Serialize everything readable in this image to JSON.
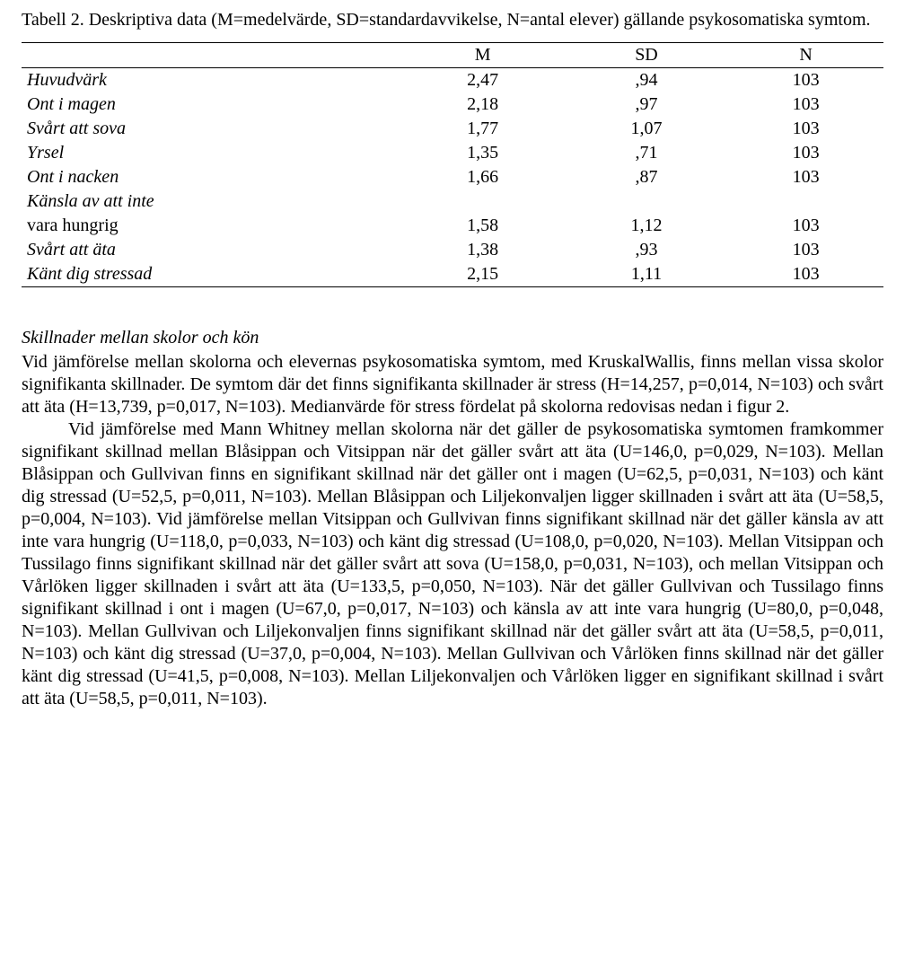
{
  "caption": "Tabell 2. Deskriptiva data (M=medelvärde, SD=standardavvikelse, N=antal elever) gällande psykosomatiska symtom.",
  "table": {
    "columns": [
      "",
      "M",
      "SD",
      "N"
    ],
    "rows": [
      {
        "label": "Huvudvärk",
        "cont": "",
        "m": "2,47",
        "sd": ",94",
        "n": "103"
      },
      {
        "label": "Ont i magen",
        "cont": "",
        "m": "2,18",
        "sd": ",97",
        "n": "103"
      },
      {
        "label": "Svårt att sova",
        "cont": "",
        "m": "1,77",
        "sd": "1,07",
        "n": "103"
      },
      {
        "label": "Yrsel",
        "cont": "",
        "m": "1,35",
        "sd": ",71",
        "n": "103"
      },
      {
        "label": "Ont i nacken",
        "cont": "",
        "m": "1,66",
        "sd": ",87",
        "n": "103"
      },
      {
        "label": "Känsla av att inte",
        "cont": "vara hungrig",
        "m": "1,58",
        "sd": "1,12",
        "n": "103"
      },
      {
        "label": "Svårt att äta",
        "cont": "",
        "m": "1,38",
        "sd": ",93",
        "n": "103"
      },
      {
        "label": "Känt dig stressad",
        "cont": "",
        "m": "2,15",
        "sd": "1,11",
        "n": "103"
      }
    ]
  },
  "section_title": "Skillnader mellan skolor och kön",
  "para1": "Vid jämförelse mellan skolorna och elevernas psykosomatiska symtom, med KruskalWallis, finns mellan vissa skolor signifikanta skillnader. De symtom där det finns signifikanta skillnader är stress (H=14,257, p=0,014, N=103) och svårt att äta (H=13,739, p=0,017, N=103). Medianvärde för stress fördelat på skolorna redovisas nedan i figur 2.",
  "para2": "Vid jämförelse med Mann Whitney mellan skolorna när det gäller de psykosomatiska symtomen framkommer signifikant skillnad mellan Blåsippan och Vitsippan när det gäller svårt att äta (U=146,0, p=0,029, N=103). Mellan Blåsippan och Gullvivan finns en signifikant skillnad när det gäller ont i magen (U=62,5, p=0,031, N=103) och känt dig stressad (U=52,5, p=0,011, N=103). Mellan Blåsippan och Liljekonvaljen ligger skillnaden i svårt att äta (U=58,5, p=0,004, N=103). Vid jämförelse mellan Vitsippan och Gullvivan finns signifikant skillnad när det gäller känsla av att inte vara hungrig (U=118,0, p=0,033, N=103) och känt dig stressad (U=108,0, p=0,020, N=103). Mellan Vitsippan och Tussilago finns signifikant skillnad när det gäller svårt att sova (U=158,0, p=0,031, N=103), och mellan Vitsippan och Vårlöken ligger skillnaden i svårt att äta (U=133,5, p=0,050, N=103). När det gäller Gullvivan och Tussilago finns signifikant skillnad i ont i magen (U=67,0, p=0,017, N=103) och känsla av att inte vara hungrig (U=80,0, p=0,048, N=103). Mellan Gullvivan och Liljekonvaljen finns signifikant skillnad när det gäller svårt att äta (U=58,5, p=0,011, N=103) och känt dig stressad (U=37,0, p=0,004, N=103). Mellan Gullvivan och Vårlöken finns skillnad när det gäller känt dig stressad (U=41,5, p=0,008, N=103). Mellan Liljekonvaljen och Vårlöken ligger en signifikant skillnad i svårt att äta (U=58,5, p=0,011, N=103)."
}
